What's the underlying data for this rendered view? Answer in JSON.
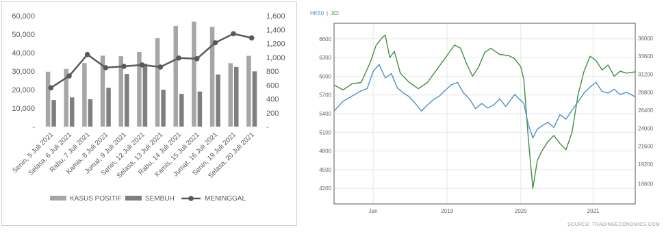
{
  "chart_data": [
    {
      "type": "bar",
      "categories": [
        "Senin, 5 Juli 2021",
        "Selasa, 6 Juli 2021",
        "Rabu, 7 Juli 2021",
        "Kamis, 8 Juli 2021",
        "Jumat, 9 Juli 2021",
        "Senin, 12 Juli 2021",
        "Selasa, 13 Juli 2021",
        "Rabu, 14 Juli 2021",
        "Kamis, 15 Juli 2021",
        "Jumat, 16 Juli 2021",
        "Senin, 19 Juli 2021",
        "Selasa, 20 Juli 2021"
      ],
      "series": [
        {
          "name": "KASUS POSITIF",
          "kind": "bar",
          "axis": "left",
          "color": "#a6a6a6",
          "values": [
            29700,
            31200,
            34400,
            38400,
            38100,
            40400,
            47900,
            54500,
            56800,
            54000,
            34300,
            38300
          ]
        },
        {
          "name": "SEMBUH",
          "kind": "bar",
          "axis": "left",
          "color": "#7f7f7f",
          "values": [
            14400,
            15800,
            14800,
            21000,
            28500,
            34000,
            20000,
            17700,
            19000,
            28200,
            32300,
            29900
          ]
        },
        {
          "name": "MENINGGAL",
          "kind": "line",
          "axis": "right",
          "color": "#595959",
          "values": [
            560,
            730,
            1040,
            850,
            870,
            890,
            860,
            990,
            980,
            1210,
            1340,
            1280
          ]
        }
      ],
      "ylim_left": [
        0,
        60000
      ],
      "ylim_right": [
        0,
        1600
      ],
      "yticks_left": [
        "-",
        "10,000",
        "20,000",
        "30,000",
        "40,000",
        "50,000",
        "60,000"
      ],
      "yticks_right": [
        "-",
        "200",
        "400",
        "600",
        "800",
        "1,000",
        "1,200",
        "1,400",
        "1,600"
      ],
      "legend_position": "bottom"
    },
    {
      "type": "line",
      "legend_labels": [
        "HK50",
        "JCI"
      ],
      "legend_sep": "|",
      "x_ticks": [
        "Jan",
        "2019",
        "2020",
        "2021"
      ],
      "ylim_left": [
        3950,
        6850
      ],
      "ylim_right": [
        13900,
        38000
      ],
      "yticks_left": [
        "4200",
        "4500",
        "4800",
        "5100",
        "5400",
        "5700",
        "6000",
        "6300",
        "6600"
      ],
      "yticks_right": [
        "16600",
        "19200",
        "21600",
        "24000",
        "26400",
        "28800",
        "31200",
        "33600",
        "36000"
      ],
      "grid": true,
      "series": [
        {
          "name": "JCI",
          "axis": "left",
          "color": "#3e8e41",
          "points": [
            [
              0,
              5860
            ],
            [
              0.03,
              5780
            ],
            [
              0.06,
              5880
            ],
            [
              0.09,
              5900
            ],
            [
              0.12,
              6220
            ],
            [
              0.14,
              6500
            ],
            [
              0.16,
              6620
            ],
            [
              0.17,
              6660
            ],
            [
              0.185,
              6300
            ],
            [
              0.2,
              6400
            ],
            [
              0.22,
              6050
            ],
            [
              0.25,
              5900
            ],
            [
              0.28,
              5800
            ],
            [
              0.31,
              5900
            ],
            [
              0.34,
              6100
            ],
            [
              0.37,
              6300
            ],
            [
              0.4,
              6500
            ],
            [
              0.42,
              6450
            ],
            [
              0.44,
              6200
            ],
            [
              0.46,
              6000
            ],
            [
              0.48,
              6150
            ],
            [
              0.5,
              6380
            ],
            [
              0.52,
              6450
            ],
            [
              0.55,
              6350
            ],
            [
              0.58,
              6330
            ],
            [
              0.6,
              6280
            ],
            [
              0.62,
              6150
            ],
            [
              0.63,
              5950
            ],
            [
              0.645,
              5000
            ],
            [
              0.66,
              4200
            ],
            [
              0.675,
              4650
            ],
            [
              0.69,
              4800
            ],
            [
              0.71,
              4950
            ],
            [
              0.73,
              5050
            ],
            [
              0.75,
              4920
            ],
            [
              0.77,
              4820
            ],
            [
              0.79,
              5100
            ],
            [
              0.81,
              5700
            ],
            [
              0.83,
              6080
            ],
            [
              0.85,
              6320
            ],
            [
              0.87,
              6250
            ],
            [
              0.89,
              6100
            ],
            [
              0.91,
              6180
            ],
            [
              0.93,
              6000
            ],
            [
              0.95,
              6080
            ],
            [
              0.97,
              6050
            ],
            [
              1,
              6070
            ]
          ]
        },
        {
          "name": "HK50",
          "axis": "right",
          "color": "#4d8fcb",
          "points": [
            [
              0,
              26300
            ],
            [
              0.03,
              27600
            ],
            [
              0.06,
              28300
            ],
            [
              0.09,
              29000
            ],
            [
              0.11,
              29300
            ],
            [
              0.13,
              31600
            ],
            [
              0.15,
              32500
            ],
            [
              0.17,
              30700
            ],
            [
              0.19,
              31300
            ],
            [
              0.21,
              29400
            ],
            [
              0.23,
              28700
            ],
            [
              0.25,
              28200
            ],
            [
              0.27,
              27300
            ],
            [
              0.29,
              26300
            ],
            [
              0.31,
              27100
            ],
            [
              0.33,
              27800
            ],
            [
              0.35,
              28300
            ],
            [
              0.37,
              29100
            ],
            [
              0.39,
              29800
            ],
            [
              0.41,
              30100
            ],
            [
              0.43,
              28700
            ],
            [
              0.45,
              27900
            ],
            [
              0.47,
              26600
            ],
            [
              0.49,
              27300
            ],
            [
              0.51,
              26700
            ],
            [
              0.53,
              27100
            ],
            [
              0.55,
              27900
            ],
            [
              0.57,
              26900
            ],
            [
              0.6,
              28500
            ],
            [
              0.63,
              27300
            ],
            [
              0.645,
              24500
            ],
            [
              0.66,
              22700
            ],
            [
              0.675,
              23900
            ],
            [
              0.69,
              24300
            ],
            [
              0.71,
              24800
            ],
            [
              0.73,
              24100
            ],
            [
              0.75,
              25800
            ],
            [
              0.77,
              25200
            ],
            [
              0.79,
              26400
            ],
            [
              0.81,
              27500
            ],
            [
              0.83,
              28700
            ],
            [
              0.85,
              29500
            ],
            [
              0.87,
              30100
            ],
            [
              0.89,
              28900
            ],
            [
              0.91,
              28700
            ],
            [
              0.93,
              29200
            ],
            [
              0.95,
              28500
            ],
            [
              0.97,
              28800
            ],
            [
              1,
              28200
            ]
          ]
        }
      ]
    }
  ],
  "source_text": "SOURCE: TRADINGECONOMICS.COM"
}
